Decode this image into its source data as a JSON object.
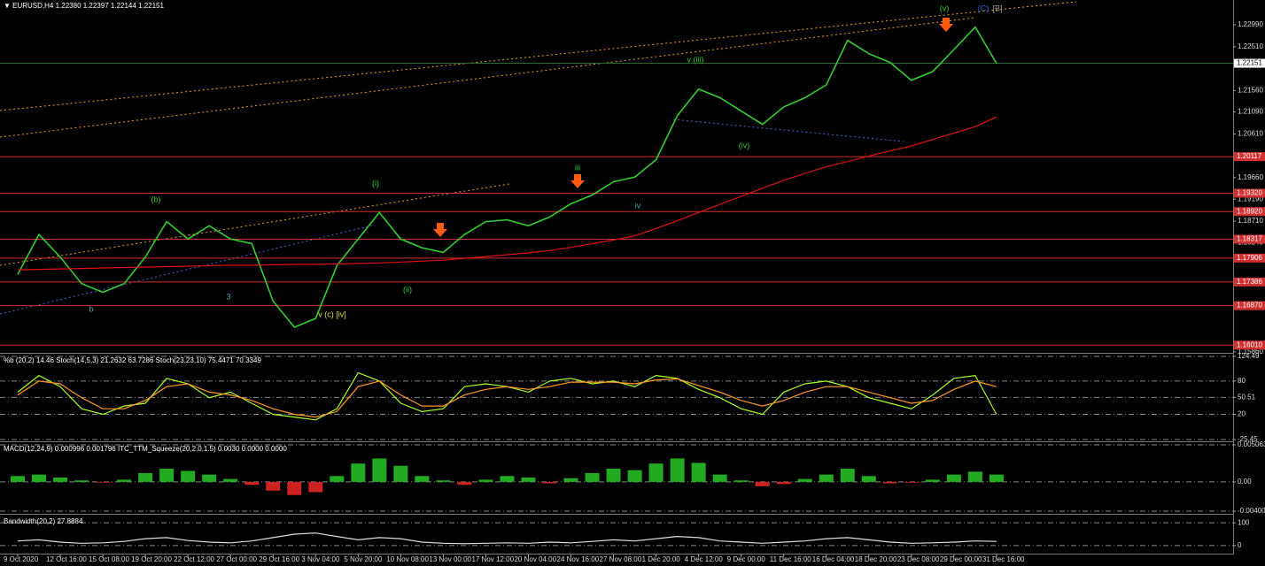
{
  "chart_data": [
    {
      "type": "line",
      "title": "▼ EURUSD,H4  1.22380 1.22397 1.22144 1.22151",
      "categories": [
        "9 Oct 2020",
        null,
        "12 Oct 16:00",
        null,
        "15 Oct 08:00",
        null,
        "19 Oct 20:00",
        null,
        "22 Oct 12:00",
        null,
        "27 Oct 00:00",
        null,
        "29 Oct 16:00",
        null,
        "3 Nov 04:00",
        null,
        "5 Nov 20:00",
        null,
        "10 Nov 08:00",
        null,
        "13 Nov 00:00",
        null,
        "17 Nov 12:00",
        null,
        "20 Nov 04:00",
        null,
        "24 Nov 16:00",
        null,
        "27 Nov 08:00",
        null,
        "1 Dec 20:00",
        null,
        "4 Dec 12:00",
        null,
        "9 Dec 00:00",
        null,
        "11 Dec 16:00",
        null,
        "16 Dec 04:00",
        null,
        "18 Dec 20:00",
        null,
        "23 Dec 08:00",
        null,
        "29 Dec 00:00",
        null,
        "31 Dec 16:00"
      ],
      "series": [
        {
          "color": "#33cc33",
          "values": [
            1.1755,
            1.1842,
            1.1793,
            1.1735,
            1.1716,
            1.1735,
            1.1793,
            1.187,
            1.1832,
            1.1861,
            1.1832,
            1.1822,
            1.1697,
            1.164,
            1.1659,
            1.1774,
            1.1832,
            1.189,
            1.1832,
            1.1813,
            1.1803,
            1.1842,
            1.187,
            1.1874,
            1.1861,
            1.188,
            1.1909,
            1.1928,
            1.1957,
            1.1967,
            1.2005,
            1.2101,
            1.2159,
            1.214,
            1.2111,
            1.2082,
            1.212,
            1.214,
            1.2168,
            1.2265,
            1.2236,
            1.2217,
            1.2178,
            1.2197,
            1.2245,
            1.2294,
            1.2215
          ]
        },
        {
          "color": "#dd1111",
          "values": [
            1.1765,
            1.1766,
            1.1767,
            1.1768,
            1.1769,
            1.177,
            1.1771,
            1.1772,
            1.1773,
            1.1774,
            1.1775,
            1.1775,
            1.1776,
            1.1777,
            1.1777,
            1.1778,
            1.1779,
            1.178,
            1.1782,
            1.1784,
            1.1786,
            1.179,
            1.1794,
            1.1798,
            1.1802,
            1.1807,
            1.1814,
            1.1822,
            1.183,
            1.1839,
            1.1855,
            1.1872,
            1.189,
            1.1908,
            1.1925,
            1.1943,
            1.196,
            1.1975,
            1.199,
            1.2001,
            1.2013,
            1.2024,
            1.2035,
            1.2049,
            1.2063,
            1.2077,
            1.2098
          ]
        }
      ],
      "ylim": [
        1.1586,
        1.2353
      ],
      "yticks": [
        {
          "value": 1.2299,
          "label": "1.22990"
        },
        {
          "value": 1.2251,
          "label": "1.22510"
        },
        {
          "value": 1.2156,
          "label": "1.21560"
        },
        {
          "value": 1.2109,
          "label": "1.21090"
        },
        {
          "value": 1.2061,
          "label": "1.20610"
        },
        {
          "value": 1.1966,
          "label": "1.19660"
        },
        {
          "value": 1.1919,
          "label": "1.19190"
        },
        {
          "value": 1.1871,
          "label": "1.18710"
        },
        {
          "value": 1.1824,
          "label": "1.18240"
        },
        {
          "value": 1.1586,
          "label": "1.15860"
        }
      ],
      "levels": [
        1.20117,
        {
          "value": 1.1932,
          "label": "1.19320"
        },
        {
          "value": 1.1892,
          "label": "1.18920"
        },
        1.18317,
        1.17906,
        1.17386,
        {
          "value": 1.1687,
          "label": "1.16870"
        },
        {
          "value": 1.1601,
          "label": "1.16010"
        }
      ],
      "current_price": 1.22151,
      "annotations": [
        "(b)",
        "b",
        "3",
        "(i)",
        "(ii)",
        "iii",
        "iv",
        "v (iii)",
        "(iv)",
        "(v)",
        "v (c) [iv]",
        "(C)",
        "[B]"
      ]
    },
    {
      "type": "line",
      "title": "%b (20,2) 14.46  Stoch(14,5,3) 21.2632 63.7286  Stoch(23,23,10) 75.4471 70.3349",
      "series": [
        {
          "color": "#aaff22",
          "values": [
            60,
            90,
            70,
            30,
            20,
            35,
            40,
            85,
            75,
            50,
            60,
            40,
            20,
            15,
            10,
            30,
            95,
            80,
            40,
            25,
            30,
            70,
            75,
            70,
            60,
            80,
            85,
            75,
            80,
            70,
            90,
            85,
            65,
            50,
            30,
            20,
            60,
            75,
            80,
            70,
            50,
            40,
            30,
            55,
            85,
            90,
            20
          ]
        },
        {
          "color": "#ff9922",
          "values": [
            55,
            80,
            75,
            50,
            30,
            30,
            45,
            70,
            75,
            60,
            55,
            45,
            30,
            20,
            15,
            25,
            70,
            80,
            55,
            35,
            35,
            55,
            65,
            70,
            65,
            70,
            78,
            78,
            78,
            75,
            82,
            84,
            72,
            60,
            45,
            35,
            45,
            60,
            70,
            70,
            60,
            50,
            40,
            45,
            65,
            80,
            70
          ]
        }
      ],
      "ylim": [
        -25.45,
        124.49
      ],
      "yticks": [
        124.49,
        80,
        50.51,
        20,
        -25.45
      ]
    },
    {
      "type": "bar",
      "title": "MACD(12,24,9) 0.000996 0.001796  ITC_TTM_Squeeze(20,2.0,1.5) 0.0030 0.0000 0.0000",
      "values": [
        0.0008,
        0.001,
        0.0006,
        0.0002,
        -0.0001,
        0.0003,
        0.0012,
        0.0018,
        0.0015,
        0.001,
        0.0004,
        -0.0004,
        -0.0012,
        -0.0018,
        -0.0014,
        0.0008,
        0.0025,
        0.0032,
        0.0022,
        0.0008,
        0.0002,
        -0.0004,
        0.0003,
        0.0008,
        0.0006,
        -0.0002,
        0.0005,
        0.0012,
        0.0018,
        0.0016,
        0.0025,
        0.0032,
        0.0026,
        0.001,
        0.0002,
        -0.0006,
        -0.0003,
        0.0004,
        0.001,
        0.0018,
        0.0008,
        -0.0002,
        -0.0001,
        0.0003,
        0.001,
        0.0014,
        0.001
      ],
      "color": "#22aa22",
      "negative_color": "#cc2222",
      "ylim": [
        -0.004003,
        0.005063
      ],
      "yticks": [
        0.005063,
        {
          "value": 0,
          "label": "0.00"
        },
        -0.004003
      ]
    },
    {
      "type": "line",
      "title": "Bandwidth(20,2) 27.8884",
      "series": [
        {
          "color": "#dddddd",
          "values": [
            20,
            25,
            15,
            10,
            12,
            18,
            30,
            35,
            22,
            15,
            12,
            20,
            35,
            50,
            55,
            40,
            25,
            35,
            30,
            15,
            10,
            8,
            10,
            12,
            10,
            15,
            12,
            18,
            25,
            20,
            30,
            40,
            35,
            20,
            15,
            10,
            15,
            20,
            30,
            35,
            25,
            15,
            10,
            12,
            15,
            20,
            18
          ]
        }
      ],
      "ylim": [
        -20,
        120
      ],
      "yticks": [
        100,
        0
      ]
    }
  ]
}
